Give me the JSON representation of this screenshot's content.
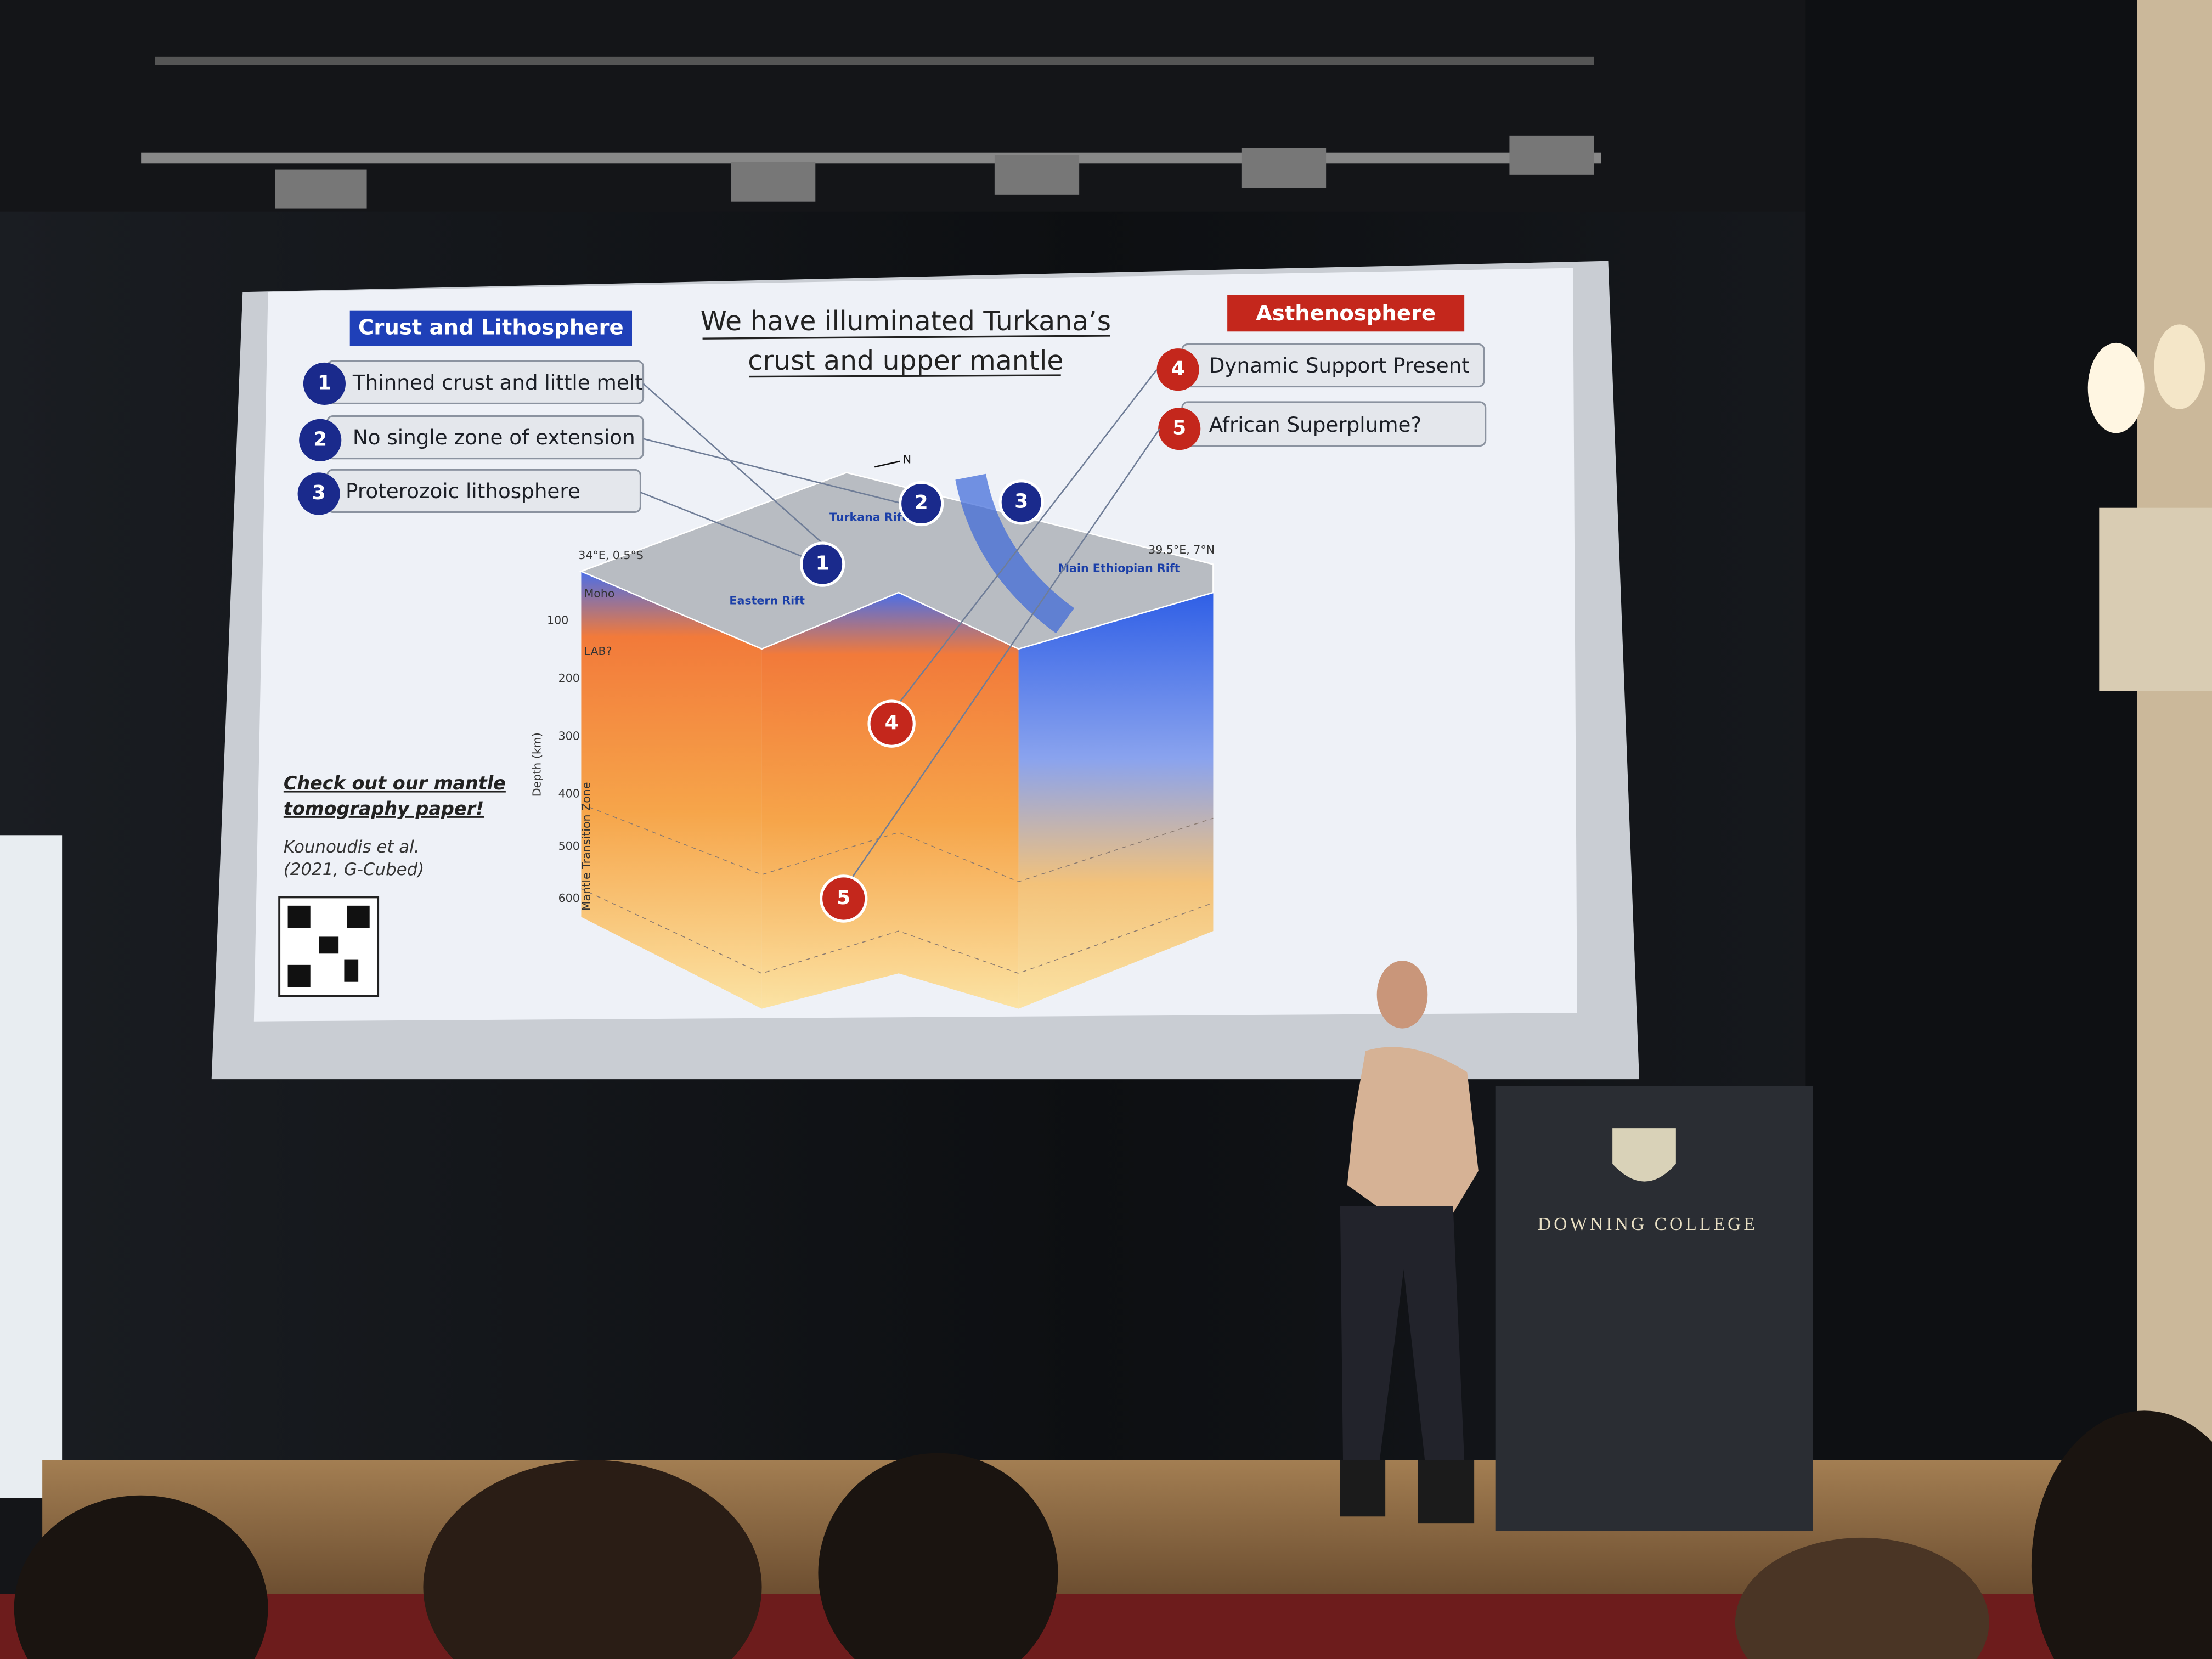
{
  "slide": {
    "title": [
      "We have illuminated Turkana’s",
      "crust and upper mantle"
    ],
    "left_panel": {
      "heading": "Crust and Lithosphere",
      "items": [
        {
          "number": "1",
          "text": "Thinned crust and little melt"
        },
        {
          "number": "2",
          "text": "No single zone of extension"
        },
        {
          "number": "3",
          "text": "Proterozoic lithosphere"
        }
      ]
    },
    "right_panel": {
      "heading": "Asthenosphere",
      "items": [
        {
          "number": "4",
          "text": "Dynamic Support Present"
        },
        {
          "number": "5",
          "text": "African Superplume?"
        }
      ]
    },
    "diagram": {
      "north": "N",
      "corner_sw": "34°E, 0.5°S",
      "corner_ne": "39.5°E, 7°N",
      "rifts": [
        "Turkana Rift",
        "Main Ethiopian Rift",
        "Eastern Rift"
      ],
      "layers": [
        "Moho",
        "LAB?"
      ],
      "depth_axis": {
        "label": "Depth (km)",
        "ticks": [
          "100",
          "200",
          "300",
          "400",
          "500",
          "600"
        ]
      },
      "zone_label": "Mantle Transition Zone",
      "markers": [
        "1",
        "2",
        "3",
        "4",
        "5"
      ]
    },
    "note": {
      "link": [
        "Check out our mantle",
        "tomography paper!"
      ],
      "citation": [
        "Kounoudis et al.",
        "(2021, G-Cubed)"
      ]
    }
  },
  "podium": {
    "text": "DOWNING COLLEGE"
  }
}
